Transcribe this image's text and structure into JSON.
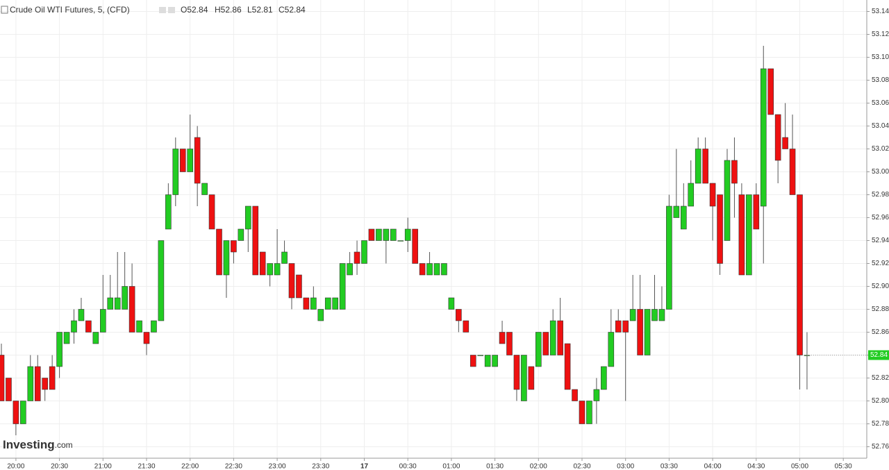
{
  "header": {
    "title": "Crude Oil WTI Futures, 5, (CFD)",
    "ohlc": [
      "O52.84",
      "H52.86",
      "L52.81",
      "C52.84"
    ]
  },
  "watermark": "Investing",
  "watermark_suffix": ".com",
  "chart_data": {
    "type": "candlestick",
    "up_color": "#22cc22",
    "down_color": "#ee1111",
    "grid": true,
    "last_price": 52.84,
    "categories": [
      null,
      null,
      "20:00",
      null,
      null,
      null,
      null,
      null,
      "20:30",
      null,
      null,
      null,
      null,
      null,
      "21:00",
      null,
      null,
      null,
      null,
      null,
      "21:30",
      null,
      null,
      null,
      null,
      null,
      "22:00",
      null,
      null,
      null,
      null,
      null,
      "22:30",
      null,
      null,
      null,
      null,
      null,
      "23:00",
      null,
      null,
      null,
      null,
      null,
      "23:30",
      null,
      null,
      null,
      null,
      null,
      "17",
      null,
      null,
      null,
      null,
      null,
      "00:30",
      null,
      null,
      null,
      null,
      null,
      "01:00",
      null,
      null,
      null,
      null,
      null,
      "01:30",
      null,
      null,
      null,
      null,
      null,
      "02:00",
      null,
      null,
      null,
      null,
      null,
      "02:30",
      null,
      null,
      null,
      null,
      null,
      "03:00",
      null,
      null,
      null,
      null,
      null,
      "03:30",
      null,
      null,
      null,
      null,
      null,
      "04:00",
      null,
      null,
      null,
      null,
      null,
      "04:30",
      null,
      null,
      null,
      null,
      null,
      "05:00",
      null,
      null,
      null,
      null,
      null,
      "05:30",
      null,
      null
    ],
    "open": [
      52.84,
      52.82,
      52.8,
      52.78,
      52.8,
      52.83,
      52.82,
      52.83,
      52.83,
      52.85,
      52.86,
      52.87,
      52.87,
      52.85,
      52.86,
      52.88,
      52.88,
      52.88,
      52.9,
      52.86,
      52.86,
      52.86,
      52.87,
      52.95,
      52.98,
      53.02,
      53.0,
      53.03,
      52.98,
      52.98,
      52.95,
      52.91,
      52.94,
      52.94,
      52.95,
      52.97,
      52.93,
      52.91,
      52.91,
      52.92,
      52.92,
      52.91,
      52.89,
      52.88,
      52.87,
      52.88,
      52.88,
      52.88,
      52.91,
      52.93,
      52.92,
      52.95,
      52.94,
      52.94,
      52.94,
      52.94,
      52.94,
      52.95,
      52.92,
      52.91,
      52.91,
      52.91,
      52.88,
      52.88,
      52.87,
      52.84,
      52.84,
      52.83,
      52.83,
      52.86,
      52.86,
      52.84,
      52.8,
      52.83,
      52.83,
      52.86,
      52.84,
      52.87,
      52.85,
      52.81,
      52.8,
      52.78,
      52.8,
      52.81,
      52.83,
      52.87,
      52.87,
      52.87,
      52.88,
      52.84,
      52.87,
      52.87,
      52.88,
      52.96,
      52.95,
      52.97,
      52.99,
      53.02,
      52.99,
      52.98,
      52.94,
      53.01,
      52.98,
      52.91,
      52.98,
      52.97,
      53.09,
      53.05,
      53.03,
      53.02,
      52.98,
      52.84,
      null,
      null,
      null,
      null,
      null,
      null,
      null
    ],
    "close": [
      52.8,
      52.8,
      52.78,
      52.8,
      52.83,
      52.8,
      52.81,
      52.81,
      52.86,
      52.86,
      52.87,
      52.88,
      52.86,
      52.86,
      52.88,
      52.89,
      52.89,
      52.9,
      52.86,
      52.87,
      52.85,
      52.87,
      52.94,
      52.98,
      53.02,
      53.0,
      53.02,
      52.99,
      52.99,
      52.95,
      52.91,
      52.94,
      52.93,
      52.95,
      52.97,
      52.91,
      52.91,
      52.92,
      52.92,
      52.93,
      52.89,
      52.89,
      52.88,
      52.89,
      52.88,
      52.89,
      52.89,
      52.92,
      52.92,
      52.92,
      52.94,
      52.94,
      52.95,
      52.95,
      52.95,
      52.94,
      52.95,
      52.92,
      52.91,
      52.92,
      52.92,
      52.92,
      52.89,
      52.87,
      52.86,
      52.83,
      52.84,
      52.84,
      52.84,
      52.85,
      52.84,
      52.81,
      52.84,
      52.81,
      52.86,
      52.84,
      52.87,
      52.84,
      52.81,
      52.8,
      52.78,
      52.8,
      52.81,
      52.83,
      52.86,
      52.86,
      52.86,
      52.88,
      52.84,
      52.88,
      52.88,
      52.88,
      52.97,
      52.97,
      52.97,
      52.99,
      53.02,
      52.99,
      52.97,
      52.92,
      53.01,
      52.99,
      52.91,
      52.98,
      52.95,
      53.09,
      53.05,
      53.01,
      53.02,
      52.98,
      52.84,
      52.84,
      null,
      null,
      null,
      null,
      null,
      null,
      null
    ],
    "high": [
      52.85,
      52.82,
      52.8,
      52.8,
      52.84,
      52.84,
      52.82,
      52.84,
      52.86,
      52.86,
      52.88,
      52.89,
      52.87,
      52.86,
      52.91,
      52.91,
      52.93,
      52.93,
      52.92,
      52.87,
      52.86,
      52.87,
      52.94,
      52.99,
      53.03,
      53.02,
      53.05,
      53.04,
      52.99,
      52.98,
      52.95,
      52.94,
      52.94,
      52.95,
      52.97,
      52.97,
      52.93,
      52.92,
      52.95,
      52.94,
      52.92,
      52.91,
      52.89,
      52.9,
      52.88,
      52.89,
      52.89,
      52.92,
      52.93,
      52.94,
      52.94,
      52.95,
      52.95,
      52.95,
      52.95,
      52.94,
      52.96,
      52.95,
      52.92,
      52.93,
      52.92,
      52.92,
      52.89,
      52.88,
      52.87,
      52.84,
      52.84,
      52.84,
      52.84,
      52.87,
      52.86,
      52.84,
      52.84,
      52.83,
      52.86,
      52.86,
      52.88,
      52.89,
      52.85,
      52.81,
      52.8,
      52.8,
      52.82,
      52.83,
      52.88,
      52.88,
      52.87,
      52.91,
      52.91,
      52.88,
      52.91,
      52.9,
      52.98,
      53.02,
      52.99,
      53.01,
      53.03,
      53.03,
      52.99,
      52.98,
      53.02,
      53.03,
      52.99,
      52.98,
      52.99,
      53.11,
      53.09,
      53.05,
      53.06,
      53.05,
      52.98,
      52.86,
      null,
      null,
      null,
      null,
      null,
      null,
      null
    ],
    "low": [
      52.8,
      52.8,
      52.77,
      52.78,
      52.8,
      52.8,
      52.8,
      52.81,
      52.82,
      52.85,
      52.85,
      52.87,
      52.86,
      52.85,
      52.86,
      52.88,
      52.88,
      52.88,
      52.86,
      52.86,
      52.84,
      52.86,
      52.87,
      52.95,
      52.97,
      53.0,
      53.0,
      52.97,
      52.98,
      52.95,
      52.91,
      52.89,
      52.92,
      52.94,
      52.93,
      52.91,
      52.91,
      52.9,
      52.91,
      52.92,
      52.88,
      52.89,
      52.88,
      52.88,
      52.87,
      52.88,
      52.88,
      52.88,
      52.91,
      52.91,
      52.92,
      52.94,
      52.94,
      52.92,
      52.94,
      52.94,
      52.93,
      52.92,
      52.91,
      52.91,
      52.91,
      52.91,
      52.88,
      52.86,
      52.86,
      52.83,
      52.84,
      52.83,
      52.83,
      52.85,
      52.84,
      52.8,
      52.8,
      52.81,
      52.83,
      52.84,
      52.84,
      52.84,
      52.81,
      52.8,
      52.78,
      52.78,
      52.78,
      52.81,
      52.83,
      52.86,
      52.8,
      52.87,
      52.84,
      52.84,
      52.87,
      52.87,
      52.88,
      52.96,
      52.95,
      52.97,
      52.99,
      52.99,
      52.94,
      52.91,
      52.94,
      52.96,
      52.91,
      52.91,
      52.95,
      52.92,
      53.05,
      52.99,
      53.02,
      52.98,
      52.81,
      52.81,
      null,
      null,
      null,
      null,
      null,
      null,
      null
    ],
    "ylim": [
      52.75,
      53.15
    ],
    "yticks": [
      52.76,
      52.78,
      {
        "value": 52.8,
        "label": "52.80"
      },
      52.82,
      52.84,
      52.86,
      52.88,
      {
        "value": 52.9,
        "label": "52.90"
      },
      52.92,
      52.94,
      52.96,
      52.98,
      {
        "value": 53,
        "label": "53.00"
      },
      53.02,
      53.04,
      53.06,
      53.08,
      {
        "value": 53.1,
        "label": "53.10"
      },
      53.12,
      53.14
    ]
  }
}
